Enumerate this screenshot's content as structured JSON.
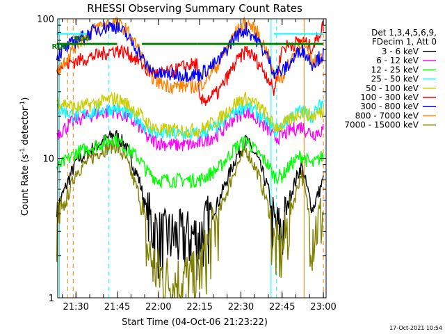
{
  "chart_data": {
    "type": "line",
    "title": "RHESSI Observing Summary Count Rates",
    "xlabel": "Start Time (04-Oct-06 21:23:22)",
    "ylabel_prefix": "Count Rate (s",
    "ylabel_sup1": "-1",
    "ylabel_mid": " detector",
    "ylabel_sup2": "-1",
    "ylabel_suffix": ")",
    "y_scale": "log",
    "ylim": [
      1,
      100
    ],
    "xlim": [
      "21:23:22",
      "23:01:00"
    ],
    "x_tick_labels": [
      "21:30",
      "21:45",
      "22:00",
      "22:15",
      "22:30",
      "22:45",
      "23:00"
    ],
    "x_tick_values": [
      "21:30",
      "21:45",
      "22:00",
      "22:15",
      "22:30",
      "22:45",
      "23:00"
    ],
    "y_tick_labels": [
      "1",
      "10",
      "100"
    ],
    "y_tick_values": [
      1,
      10,
      100
    ],
    "legend_header": [
      "Det 1,3,4,5,6,9,",
      "FDecim 1, Att 0"
    ],
    "legend_placement": "right",
    "timestamp": "17-Oct-2021 10:54",
    "time_points": [
      "21:23",
      "21:30",
      "21:38",
      "21:44",
      "21:48",
      "21:53",
      "21:56",
      "22:00",
      "22:05",
      "22:10",
      "22:14",
      "22:15",
      "22:22",
      "22:28",
      "22:32",
      "22:36",
      "22:40",
      "22:42",
      "22:45",
      "22:48",
      "22:52",
      "22:56",
      "23:00"
    ],
    "series": [
      {
        "name": "3 - 6 keV",
        "color": "#000000",
        "values": [
          4.3,
          9.5,
          12.5,
          15,
          12.5,
          7,
          4,
          2.8,
          2.8,
          2.8,
          2.8,
          2.8,
          5,
          10,
          13.5,
          10,
          6,
          3.3,
          3,
          5.5,
          9,
          4.3,
          7
        ]
      },
      {
        "name": "6 - 12 keV",
        "color": "#ff00ff",
        "values": [
          15,
          19,
          21,
          22,
          20,
          17,
          14,
          13,
          12.5,
          12.5,
          12.5,
          13,
          15,
          20,
          22,
          19,
          16,
          14,
          14.5,
          16,
          17,
          15,
          16
        ]
      },
      {
        "name": "12 - 25 keV",
        "color": "#00ff00",
        "values": [
          8.5,
          11,
          12.5,
          14,
          12,
          10,
          8,
          7,
          7,
          7,
          7,
          7,
          8.5,
          12,
          13.5,
          11,
          9,
          7.5,
          7.5,
          9,
          10.5,
          9,
          10.5
        ]
      },
      {
        "name": "25 - 50 keV",
        "color": "#00ffff",
        "values": [
          23,
          20,
          22,
          23,
          21,
          19,
          16,
          15,
          15,
          15,
          15,
          15,
          17,
          22,
          24,
          21,
          18,
          16,
          17,
          20,
          22,
          20,
          26
        ]
      },
      {
        "name": "50 - 100 keV",
        "color": "#cccc00",
        "values": [
          26,
          23,
          25,
          27,
          25,
          21,
          18,
          16,
          16,
          16,
          16,
          16,
          19,
          25,
          27,
          24,
          20,
          17,
          17,
          19,
          22,
          20,
          22
        ]
      },
      {
        "name": "100 - 300 keV",
        "color": "#ff0000",
        "values": [
          45,
          50,
          55,
          60,
          58,
          50,
          42,
          40,
          42,
          46,
          48,
          25,
          30,
          48,
          60,
          50,
          38,
          30,
          62,
          65,
          70,
          62,
          90
        ]
      },
      {
        "name": "300 - 800 keV",
        "color": "#0000ff",
        "values": [
          55,
          70,
          85,
          90,
          78,
          58,
          45,
          40,
          40,
          40,
          40,
          40,
          50,
          75,
          85,
          70,
          52,
          42,
          42,
          48,
          62,
          48,
          56
        ]
      },
      {
        "name": "800 - 7000 keV",
        "color": "#ff8000",
        "values": [
          42,
          65,
          88,
          95,
          85,
          60,
          42,
          35,
          33,
          33,
          33,
          33,
          48,
          80,
          95,
          80,
          55,
          38,
          38,
          50,
          70,
          48,
          55
        ]
      },
      {
        "name": "7000 - 15000 keV",
        "color": "#808000",
        "values": [
          3.2,
          8,
          11,
          12.5,
          10,
          5.5,
          2.2,
          1.5,
          1.3,
          1.4,
          1.4,
          1.6,
          4,
          8.5,
          11.5,
          8,
          4.5,
          2.4,
          2.2,
          4,
          8,
          3,
          4
        ]
      }
    ],
    "vertical_markers": [
      {
        "time": "21:24",
        "color": "#00ffff",
        "style": "solid"
      },
      {
        "time": "21:27",
        "color": "#ff8000",
        "style": "dashed"
      },
      {
        "time": "21:29",
        "color": "#ff8000",
        "style": "dashed"
      },
      {
        "time": "21:42",
        "color": "#00ffff",
        "style": "dashed"
      },
      {
        "time": "22:41",
        "color": "#00ffff",
        "style": "solid"
      },
      {
        "time": "22:43",
        "color": "#00ffff",
        "style": "dashed"
      },
      {
        "time": "22:53",
        "color": "#ff8000",
        "style": "solid"
      },
      {
        "time": "23:00",
        "color": "#ff8000",
        "style": "dashed"
      }
    ],
    "overlay_labels": [
      {
        "text": "RD6",
        "color": "#008000"
      },
      {
        "text": "RD6",
        "color": "#008000"
      }
    ],
    "flag_bands": [
      {
        "name": "cyan",
        "color": "#00ffff",
        "value": 78,
        "segments": [
          [
            "21:23",
            "21:34"
          ],
          [
            "22:42",
            "23:00"
          ]
        ]
      },
      {
        "name": "green",
        "color": "#008000",
        "value": 66,
        "segments": [
          [
            "21:23",
            "21:45"
          ],
          [
            "21:54",
            "22:14"
          ],
          [
            "22:14",
            "22:42"
          ],
          [
            "22:42",
            "23:00"
          ]
        ]
      }
    ]
  }
}
